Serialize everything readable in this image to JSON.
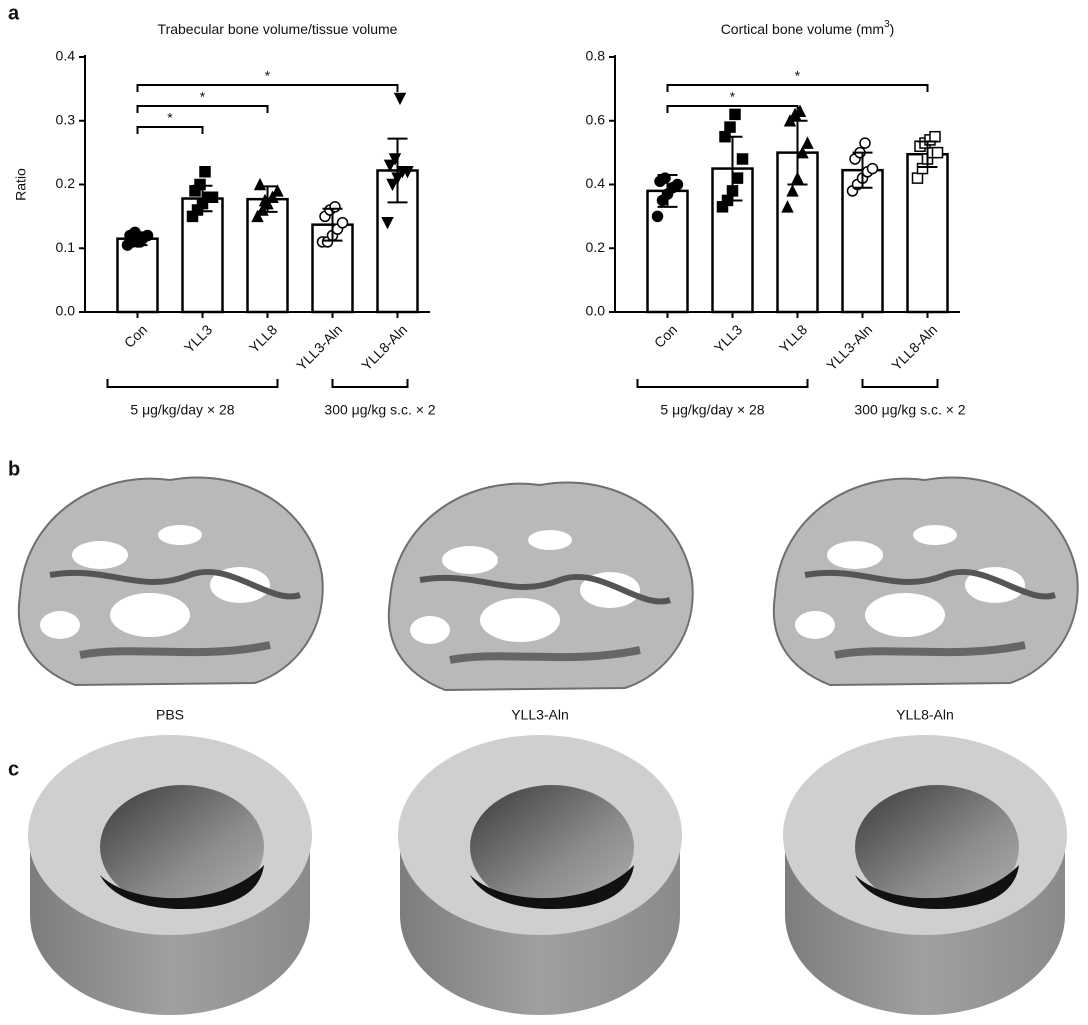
{
  "panel_labels": [
    "a",
    "b",
    "c"
  ],
  "chart_data": [
    {
      "type": "bar",
      "title": "Trabecular bone volume/tissue volume",
      "y_label": "Ratio",
      "categories": [
        "Con",
        "YLL3",
        "YLL8",
        "YLL3-Aln",
        "YLL8-Aln"
      ],
      "values": [
        0.115,
        0.178,
        0.177,
        0.137,
        0.222
      ],
      "errors": [
        0.01,
        0.02,
        0.02,
        0.025,
        0.05
      ],
      "points": [
        [
          0.105,
          0.11,
          0.11,
          0.115,
          0.12,
          0.12,
          0.125,
          0.11
        ],
        [
          0.15,
          0.16,
          0.17,
          0.18,
          0.18,
          0.19,
          0.2,
          0.22
        ],
        [
          0.15,
          0.16,
          0.17,
          0.18,
          0.19,
          0.2,
          0.175
        ],
        [
          0.11,
          0.11,
          0.12,
          0.13,
          0.14,
          0.15,
          0.16,
          0.165
        ],
        [
          0.14,
          0.2,
          0.21,
          0.22,
          0.22,
          0.23,
          0.24,
          0.335
        ]
      ],
      "markers": [
        "circle-filled",
        "square-filled",
        "triangle-filled",
        "circle-open",
        "triangle-down-filled"
      ],
      "color": "#ffffff",
      "ylim": [
        0,
        0.4
      ],
      "yticks": [
        {
          "value": 0,
          "label": "0.0"
        },
        0.1,
        0.2,
        0.3,
        0.4
      ],
      "significance": [
        {
          "from": 0,
          "to": 1,
          "label": "*"
        },
        {
          "from": 0,
          "to": 2,
          "label": "*"
        },
        {
          "from": 0,
          "to": 4,
          "label": "*"
        }
      ],
      "groups": [
        {
          "from": 0,
          "to": 2,
          "label": "5 μg/kg/day × 28"
        },
        {
          "from": 3,
          "to": 4,
          "label": "300 μg/kg s.c. × 2"
        }
      ]
    },
    {
      "type": "bar",
      "title": "Cortical bone volume (mm",
      "title_sup": "3",
      "title_end": ")",
      "categories": [
        "Con",
        "YLL3",
        "YLL8",
        "YLL3-Aln",
        "YLL8-Aln"
      ],
      "values": [
        0.38,
        0.45,
        0.5,
        0.445,
        0.495
      ],
      "errors": [
        0.05,
        0.1,
        0.1,
        0.055,
        0.04
      ],
      "points": [
        [
          0.3,
          0.35,
          0.37,
          0.39,
          0.4,
          0.41,
          0.42
        ],
        [
          0.33,
          0.35,
          0.38,
          0.42,
          0.48,
          0.55,
          0.58,
          0.62
        ],
        [
          0.33,
          0.38,
          0.42,
          0.5,
          0.53,
          0.6,
          0.62,
          0.63
        ],
        [
          0.38,
          0.4,
          0.42,
          0.44,
          0.45,
          0.48,
          0.5,
          0.53
        ],
        [
          0.42,
          0.45,
          0.48,
          0.5,
          0.5,
          0.52,
          0.53,
          0.54,
          0.55
        ]
      ],
      "markers": [
        "circle-filled",
        "square-filled",
        "triangle-filled",
        "circle-open",
        "square-open"
      ],
      "color": "#ffffff",
      "ylim": [
        0,
        0.8
      ],
      "yticks": [
        {
          "value": 0,
          "label": "0.0"
        },
        0.2,
        0.4,
        0.6,
        0.8
      ],
      "significance": [
        {
          "from": 0,
          "to": 2,
          "label": "*"
        },
        {
          "from": 0,
          "to": 4,
          "label": "*"
        }
      ],
      "groups": [
        {
          "from": 0,
          "to": 2,
          "label": "5 μg/kg/day × 28"
        },
        {
          "from": 3,
          "to": 4,
          "label": "300 μg/kg s.c. × 2"
        }
      ]
    }
  ],
  "bone_images": {
    "captions": [
      "PBS",
      "YLL3-Aln",
      "YLL8-Aln"
    ]
  }
}
